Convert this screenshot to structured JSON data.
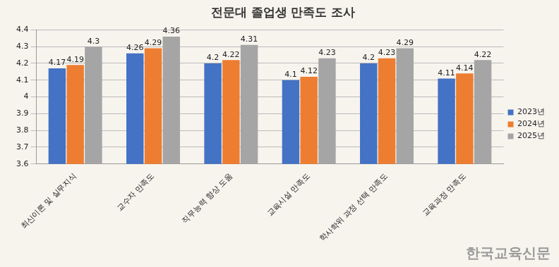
{
  "chart_data": {
    "type": "bar",
    "title": "전문대 졸업생 만족도 조사",
    "categories": [
      "최신이론 및 실무지식",
      "교수자 만족도",
      "직무능력 향상 도움",
      "교육시설 만족도",
      "학사학위 과정 선택 만족도",
      "교육과정 만족도"
    ],
    "series": [
      {
        "name": "2023년",
        "color": "#4472c4",
        "values": [
          4.17,
          4.26,
          4.2,
          4.1,
          4.2,
          4.11
        ]
      },
      {
        "name": "2024년",
        "color": "#ed7d31",
        "values": [
          4.19,
          4.29,
          4.22,
          4.12,
          4.23,
          4.14
        ]
      },
      {
        "name": "2025년",
        "color": "#a5a5a5",
        "values": [
          4.3,
          4.36,
          4.31,
          4.23,
          4.29,
          4.22
        ]
      }
    ],
    "ylim": [
      3.6,
      4.4
    ],
    "yticks": [
      3.6,
      3.7,
      3.8,
      3.9,
      4,
      4.1,
      4.2,
      4.3,
      4.4
    ],
    "grid": true,
    "legend": "right",
    "data_labels": true,
    "annotations": [
      "한국교육신문"
    ]
  }
}
